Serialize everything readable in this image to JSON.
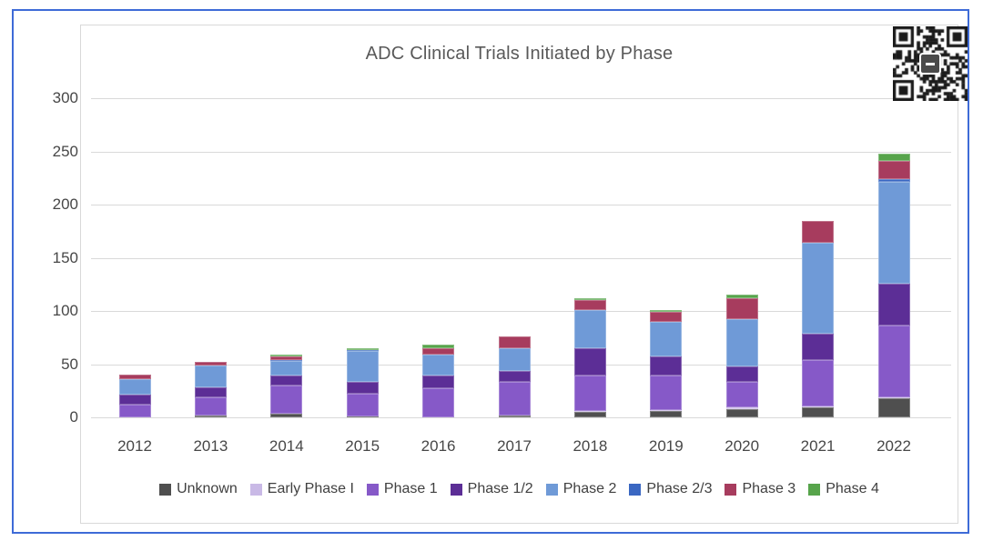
{
  "frame": {
    "border_color": "#3e6bd7"
  },
  "chart_data": {
    "type": "bar",
    "stacked": true,
    "title": "ADC Clinical Trials Initiated by Phase",
    "xlabel": "",
    "ylabel": "",
    "ylim": [
      0,
      300
    ],
    "yticks": [
      0,
      50,
      100,
      150,
      200,
      250,
      300
    ],
    "grid": "horizontal",
    "legend_position": "bottom",
    "categories": [
      "2012",
      "2013",
      "2014",
      "2015",
      "2016",
      "2017",
      "2018",
      "2019",
      "2020",
      "2021",
      "2022"
    ],
    "series": [
      {
        "name": "Unknown",
        "color": "#4f4f4f",
        "values": [
          0,
          2,
          3,
          1,
          0,
          2,
          5,
          6,
          8,
          9,
          18
        ]
      },
      {
        "name": "Early Phase I",
        "color": "#c9b9e6",
        "values": [
          0,
          0,
          0,
          0,
          0,
          0,
          1,
          1,
          1,
          1,
          1
        ]
      },
      {
        "name": "Phase 1",
        "color": "#8659c8",
        "values": [
          12,
          17,
          27,
          21,
          27,
          31,
          33,
          32,
          24,
          44,
          67
        ]
      },
      {
        "name": "Phase 1/2",
        "color": "#5c2e96",
        "values": [
          9,
          9,
          9,
          11,
          12,
          11,
          26,
          18,
          15,
          25,
          40
        ]
      },
      {
        "name": "Phase 2",
        "color": "#6f9ad7",
        "values": [
          15,
          21,
          14,
          29,
          20,
          21,
          36,
          33,
          44,
          85,
          95
        ]
      },
      {
        "name": "Phase 2/3",
        "color": "#3a67c2",
        "values": [
          0,
          0,
          1,
          1,
          0,
          0,
          0,
          0,
          0,
          0,
          3
        ]
      },
      {
        "name": "Phase 3",
        "color": "#a73c5e",
        "values": [
          4,
          3,
          3,
          0,
          6,
          11,
          9,
          9,
          20,
          21,
          17
        ]
      },
      {
        "name": "Phase 4",
        "color": "#57a44b",
        "values": [
          0,
          0,
          2,
          2,
          3,
          0,
          2,
          2,
          3,
          0,
          7
        ]
      }
    ],
    "totals": [
      40,
      52,
      59,
      65,
      68,
      76,
      112,
      101,
      115,
      185,
      248
    ]
  },
  "axis": {
    "tick_color": "#474747",
    "gridline_color": "#d9d9d9"
  },
  "decorations": {
    "qr_code": "qr-code-with-center-logo"
  }
}
